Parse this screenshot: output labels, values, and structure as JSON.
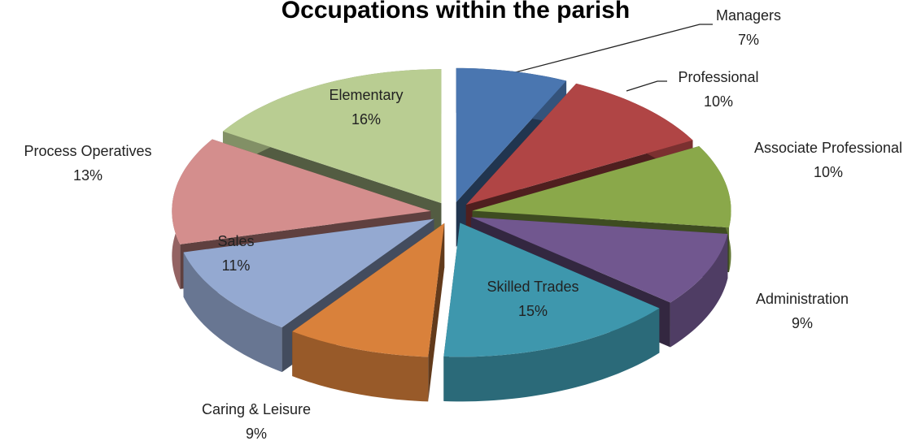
{
  "chart_data": {
    "type": "pie",
    "title": "Occupations within the parish",
    "categories": [
      "Managers",
      "Professional",
      "Associate Professional",
      "Administration",
      "Skilled Trades",
      "Caring & Leisure",
      "Sales",
      "Process Operatives",
      "Elementary"
    ],
    "values": [
      7,
      10,
      10,
      9,
      15,
      9,
      11,
      13,
      16
    ],
    "value_labels": [
      "7%",
      "10%",
      "10%",
      "9%",
      "15%",
      "9%",
      "11%",
      "13%",
      "16%"
    ],
    "colors": [
      "#4a76b0",
      "#b04545",
      "#8aa84a",
      "#71578f",
      "#3e97ad",
      "#d9813b",
      "#94a9d1",
      "#d48e8d",
      "#b9cd92"
    ]
  }
}
